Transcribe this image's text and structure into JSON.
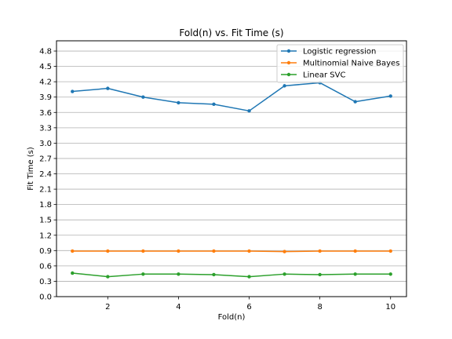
{
  "chart_data": {
    "type": "line",
    "title": "Fold(n) vs. Fit Time (s)",
    "xlabel": "Fold(n)",
    "ylabel": "Fit Time (s)",
    "x": [
      1,
      2,
      3,
      4,
      5,
      6,
      7,
      8,
      9,
      10
    ],
    "xticks": [
      2,
      4,
      6,
      8,
      10
    ],
    "xlim": [
      0.55,
      10.45
    ],
    "ylim": [
      0.0,
      5.0
    ],
    "yticks": [
      0.0,
      0.3,
      0.6,
      0.9,
      1.2,
      1.5,
      1.8,
      2.1,
      2.4,
      2.7,
      3.0,
      3.3,
      3.6,
      3.9,
      4.2,
      4.5,
      4.8
    ],
    "ytick_labels": [
      "0.0",
      "0.3",
      "0.6",
      "0.9",
      "1.2",
      "1.5",
      "1.8",
      "2.1",
      "2.4",
      "2.7",
      "3.0",
      "3.3",
      "3.6",
      "3.9",
      "4.2",
      "4.5",
      "4.8"
    ],
    "grid": "horizontal",
    "legend_position": "top-right",
    "series": [
      {
        "name": "Logistic regression",
        "color": "#1f77b4",
        "values": [
          4.01,
          4.07,
          3.9,
          3.79,
          3.76,
          3.63,
          4.12,
          4.18,
          3.81,
          3.92
        ]
      },
      {
        "name": "Multinomial Naive Bayes",
        "color": "#ff7f0e",
        "values": [
          0.89,
          0.89,
          0.89,
          0.89,
          0.89,
          0.89,
          0.88,
          0.89,
          0.89,
          0.89
        ]
      },
      {
        "name": "Linear SVC",
        "color": "#2ca02c",
        "values": [
          0.46,
          0.39,
          0.44,
          0.44,
          0.43,
          0.39,
          0.44,
          0.43,
          0.44,
          0.44
        ]
      }
    ]
  }
}
